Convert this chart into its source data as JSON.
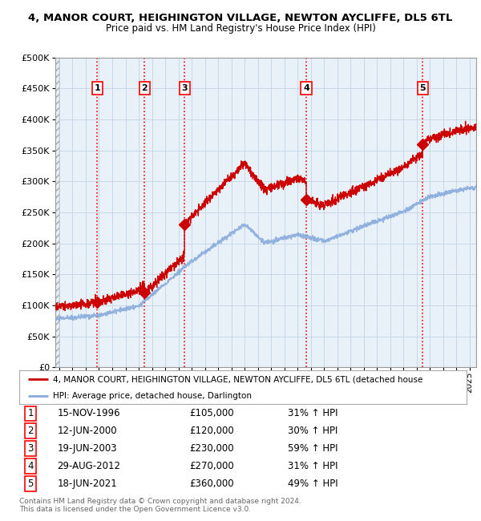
{
  "title": "4, MANOR COURT, HEIGHINGTON VILLAGE, NEWTON AYCLIFFE, DL5 6TL",
  "subtitle": "Price paid vs. HM Land Registry's House Price Index (HPI)",
  "ylim": [
    0,
    500000
  ],
  "yticks": [
    0,
    50000,
    100000,
    150000,
    200000,
    250000,
    300000,
    350000,
    400000,
    450000,
    500000
  ],
  "ytick_labels": [
    "£0",
    "£50K",
    "£100K",
    "£150K",
    "£200K",
    "£250K",
    "£300K",
    "£350K",
    "£400K",
    "£450K",
    "£500K"
  ],
  "xlim_start": 1993.7,
  "xlim_end": 2025.5,
  "sale_dates": [
    1996.875,
    2000.44,
    2003.46,
    2012.66,
    2021.46
  ],
  "sale_prices": [
    105000,
    120000,
    230000,
    270000,
    360000
  ],
  "sale_labels": [
    "1",
    "2",
    "3",
    "4",
    "5"
  ],
  "sale_label_dates": [
    "15-NOV-1996",
    "12-JUN-2000",
    "19-JUN-2003",
    "29-AUG-2012",
    "18-JUN-2021"
  ],
  "sale_label_prices": [
    "£105,000",
    "£120,000",
    "£230,000",
    "£270,000",
    "£360,000"
  ],
  "sale_label_hpi": [
    "31% ↑ HPI",
    "30% ↑ HPI",
    "59% ↑ HPI",
    "31% ↑ HPI",
    "49% ↑ HPI"
  ],
  "property_line_color": "#cc0000",
  "hpi_line_color": "#88aadd",
  "grid_color": "#c8d8e8",
  "background_color": "#e8f0f8",
  "legend_line1": "4, MANOR COURT, HEIGHINGTON VILLAGE, NEWTON AYCLIFFE, DL5 6TL (detached house",
  "legend_line2": "HPI: Average price, detached house, Darlington",
  "footer1": "Contains HM Land Registry data © Crown copyright and database right 2024.",
  "footer2": "This data is licensed under the Open Government Licence v3.0."
}
